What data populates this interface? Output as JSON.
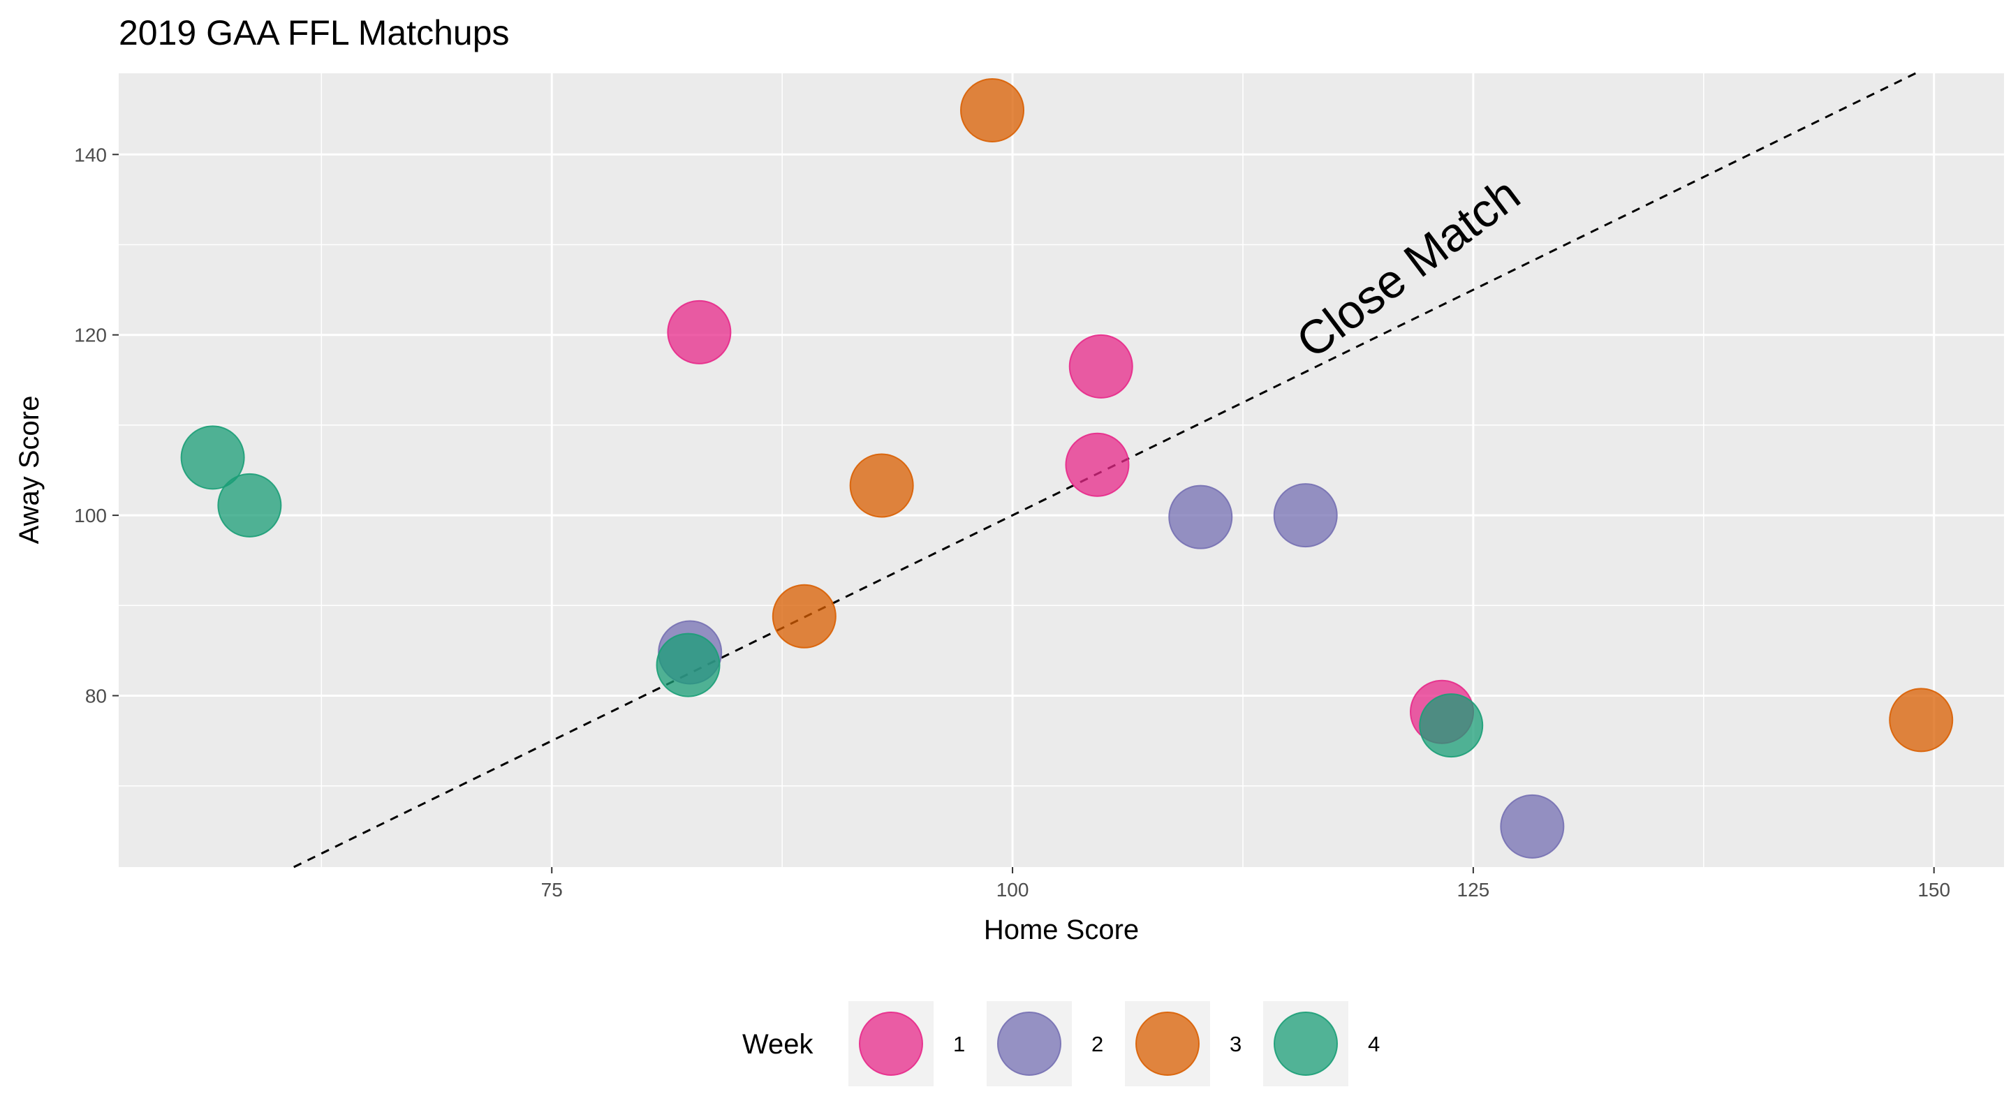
{
  "chart_data": {
    "type": "scatter",
    "title": "2019 GAA FFL Matchups",
    "xlabel": "Home Score",
    "ylabel": "Away Score",
    "xlim": [
      51.5,
      153.8
    ],
    "ylim": [
      61.0,
      149.0
    ],
    "x_ticks": [
      75,
      100,
      125,
      150
    ],
    "y_ticks": [
      80,
      100,
      120,
      140
    ],
    "grid": true,
    "panel_background": "#ebebeb",
    "grid_color": "#ffffff",
    "legend": {
      "title": "Week",
      "position": "bottom",
      "entries": [
        {
          "label": "1",
          "color": "#e7298a"
        },
        {
          "label": "2",
          "color": "#7570b3"
        },
        {
          "label": "3",
          "color": "#d95f02"
        },
        {
          "label": "4",
          "color": "#1b9e77"
        }
      ]
    },
    "reference_line": {
      "style": "dashed",
      "slope": 1,
      "intercept": 0,
      "color": "#000000"
    },
    "annotation": {
      "text": "Close Match",
      "x": 122,
      "y": 126,
      "angle_deg": 37
    },
    "series": [
      {
        "name": "1",
        "color": "#e7298a",
        "points": [
          {
            "x": 83.0,
            "y": 120.3
          },
          {
            "x": 104.8,
            "y": 116.5
          },
          {
            "x": 104.6,
            "y": 105.6
          },
          {
            "x": 123.3,
            "y": 78.2
          }
        ]
      },
      {
        "name": "2",
        "color": "#7570b3",
        "points": [
          {
            "x": 82.5,
            "y": 84.8
          },
          {
            "x": 110.2,
            "y": 99.8
          },
          {
            "x": 115.9,
            "y": 100.0
          },
          {
            "x": 128.2,
            "y": 65.5
          }
        ]
      },
      {
        "name": "3",
        "color": "#d95f02",
        "points": [
          {
            "x": 98.9,
            "y": 144.9
          },
          {
            "x": 92.9,
            "y": 103.3
          },
          {
            "x": 88.7,
            "y": 88.8
          },
          {
            "x": 149.3,
            "y": 77.3
          }
        ]
      },
      {
        "name": "4",
        "color": "#1b9e77",
        "points": [
          {
            "x": 56.6,
            "y": 106.4
          },
          {
            "x": 58.6,
            "y": 101.1
          },
          {
            "x": 82.4,
            "y": 83.4
          },
          {
            "x": 123.8,
            "y": 76.7
          }
        ]
      }
    ]
  }
}
